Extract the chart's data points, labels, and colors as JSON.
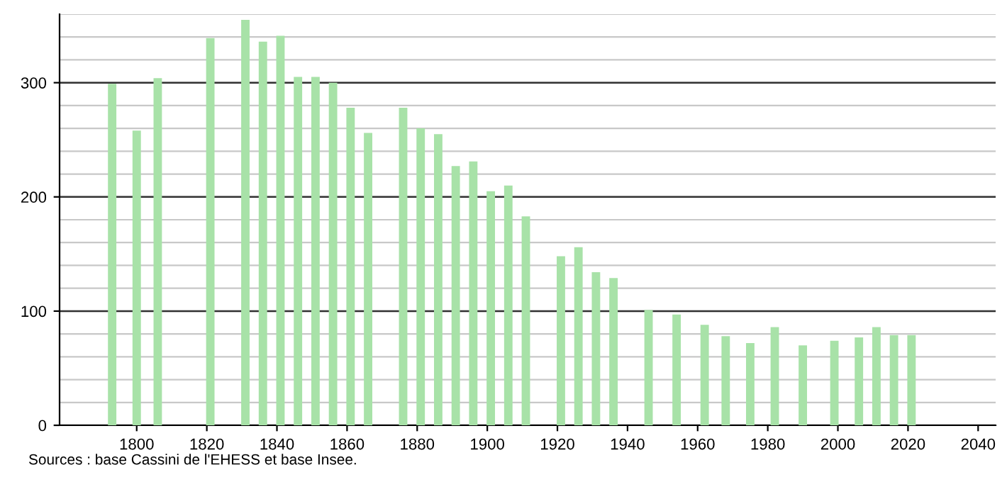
{
  "chart_data": {
    "type": "bar",
    "x": [
      1793,
      1800,
      1806,
      1821,
      1831,
      1836,
      1841,
      1846,
      1851,
      1856,
      1861,
      1866,
      1876,
      1881,
      1886,
      1891,
      1896,
      1901,
      1906,
      1911,
      1921,
      1926,
      1931,
      1936,
      1946,
      1954,
      1962,
      1968,
      1975,
      1982,
      1990,
      1999,
      2006,
      2011,
      2016,
      2021
    ],
    "values": [
      299,
      258,
      304,
      339,
      355,
      336,
      341,
      305,
      305,
      300,
      278,
      256,
      278,
      260,
      255,
      227,
      231,
      205,
      210,
      183,
      148,
      156,
      134,
      129,
      101,
      97,
      88,
      78,
      72,
      86,
      70,
      74,
      77,
      86,
      79,
      79
    ],
    "color": "#a8e2a8",
    "xlim": [
      1778,
      2045
    ],
    "xticks": [
      1800,
      1820,
      1840,
      1860,
      1880,
      1900,
      1920,
      1940,
      1960,
      1980,
      2000,
      2020,
      2040
    ],
    "ylim": [
      0,
      360
    ],
    "yticks": [
      0,
      100,
      200,
      300
    ],
    "grid": "y",
    "annotations": [
      "Sources : base Cassini de l'EHESS et base Insee."
    ]
  }
}
